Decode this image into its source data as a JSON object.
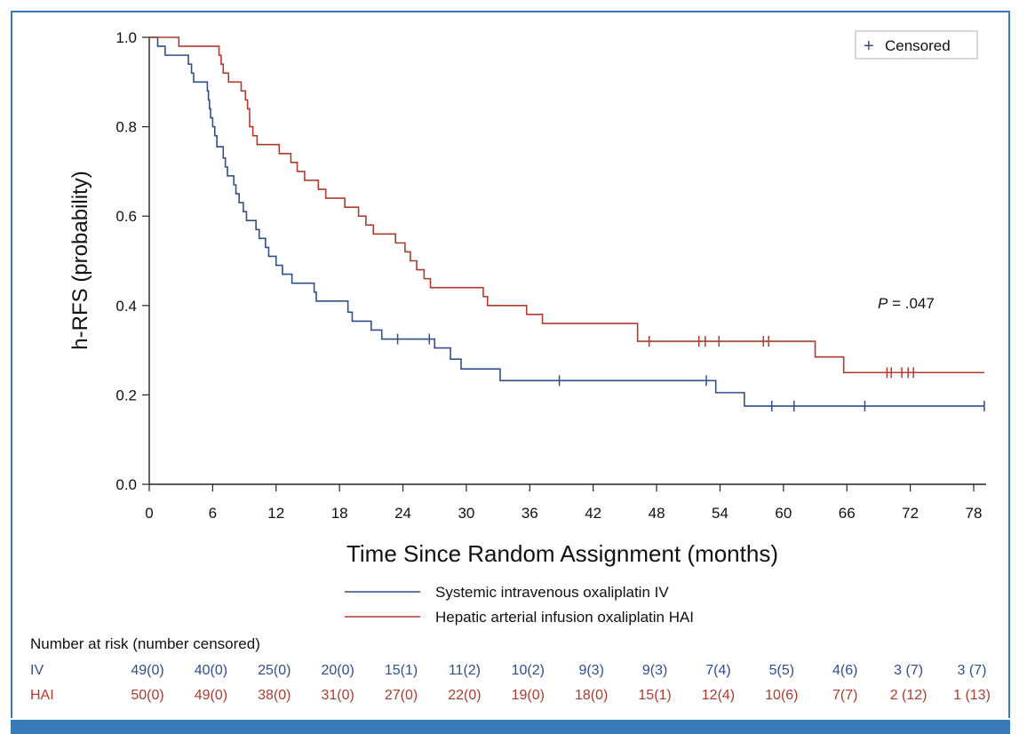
{
  "chart_data": {
    "type": "line",
    "ylabel": "h-RFS (probability)",
    "xlabel": "Time Since Random Assignment (months)",
    "xlim": [
      0,
      79
    ],
    "ylim": [
      0,
      1
    ],
    "x_ticks": [
      0,
      6,
      12,
      18,
      24,
      30,
      36,
      42,
      48,
      54,
      60,
      66,
      72,
      78
    ],
    "y_ticks": [
      "0.0",
      "0.2",
      "0.4",
      "0.6",
      "0.8",
      "1.0"
    ],
    "censored_legend": "Censored",
    "p_value_prefix": "P",
    "p_value_suffix": " = .047",
    "series": [
      {
        "name": "Systemic intravenous oxaliplatin IV",
        "short": "IV",
        "color": "#2f4f8f",
        "steps": [
          [
            0,
            1.0
          ],
          [
            0.8,
            0.98
          ],
          [
            1.5,
            0.96
          ],
          [
            3.7,
            0.94
          ],
          [
            4.0,
            0.92
          ],
          [
            4.2,
            0.9
          ],
          [
            5.5,
            0.88
          ],
          [
            5.6,
            0.86
          ],
          [
            5.7,
            0.84
          ],
          [
            5.8,
            0.82
          ],
          [
            6.0,
            0.8
          ],
          [
            6.2,
            0.78
          ],
          [
            6.4,
            0.755
          ],
          [
            7.0,
            0.73
          ],
          [
            7.2,
            0.71
          ],
          [
            7.4,
            0.69
          ],
          [
            8.0,
            0.67
          ],
          [
            8.2,
            0.65
          ],
          [
            8.5,
            0.63
          ],
          [
            8.9,
            0.61
          ],
          [
            9.2,
            0.59
          ],
          [
            10.1,
            0.57
          ],
          [
            10.4,
            0.55
          ],
          [
            11.0,
            0.53
          ],
          [
            11.3,
            0.51
          ],
          [
            12.0,
            0.49
          ],
          [
            12.6,
            0.47
          ],
          [
            13.5,
            0.45
          ],
          [
            15.6,
            0.43
          ],
          [
            15.8,
            0.41
          ],
          [
            18.8,
            0.385
          ],
          [
            19.2,
            0.365
          ],
          [
            21.0,
            0.345
          ],
          [
            22.0,
            0.325
          ],
          [
            27.0,
            0.305
          ],
          [
            28.5,
            0.28
          ],
          [
            29.5,
            0.258
          ],
          [
            33.2,
            0.232
          ],
          [
            53.6,
            0.205
          ],
          [
            56.3,
            0.175
          ],
          [
            79.0,
            0.175
          ]
        ],
        "censored": [
          23.5,
          26.5,
          38.8,
          52.7,
          58.9,
          61.0,
          67.7,
          79.0
        ]
      },
      {
        "name": "Hepatic arterial infusion oxaliplatin HAI",
        "short": "HAI",
        "color": "#b03a2e",
        "steps": [
          [
            0,
            1.0
          ],
          [
            2.8,
            0.98
          ],
          [
            6.6,
            0.96
          ],
          [
            6.8,
            0.94
          ],
          [
            7.0,
            0.92
          ],
          [
            7.5,
            0.9
          ],
          [
            8.7,
            0.88
          ],
          [
            9.1,
            0.86
          ],
          [
            9.3,
            0.84
          ],
          [
            9.5,
            0.8
          ],
          [
            9.8,
            0.78
          ],
          [
            10.2,
            0.76
          ],
          [
            12.3,
            0.74
          ],
          [
            13.4,
            0.72
          ],
          [
            14.0,
            0.7
          ],
          [
            14.7,
            0.68
          ],
          [
            16.0,
            0.66
          ],
          [
            16.7,
            0.64
          ],
          [
            18.5,
            0.62
          ],
          [
            19.8,
            0.6
          ],
          [
            20.5,
            0.58
          ],
          [
            21.2,
            0.56
          ],
          [
            23.3,
            0.54
          ],
          [
            24.2,
            0.52
          ],
          [
            24.7,
            0.5
          ],
          [
            25.3,
            0.48
          ],
          [
            26.0,
            0.46
          ],
          [
            26.6,
            0.44
          ],
          [
            31.6,
            0.42
          ],
          [
            32.0,
            0.4
          ],
          [
            35.7,
            0.38
          ],
          [
            37.2,
            0.36
          ],
          [
            46.2,
            0.32
          ],
          [
            63.0,
            0.285
          ],
          [
            65.7,
            0.25
          ],
          [
            79.0,
            0.25
          ]
        ],
        "censored": [
          47.3,
          52.0,
          52.6,
          53.9,
          58.1,
          58.6,
          69.8,
          70.2,
          71.2,
          71.8,
          72.3
        ]
      }
    ],
    "risk_table": {
      "title": "Number at risk (number censored)",
      "times": [
        0,
        6,
        12,
        18,
        24,
        30,
        36,
        42,
        48,
        54,
        60,
        66,
        72,
        78
      ],
      "IV": [
        "49(0)",
        "40(0)",
        "25(0)",
        "20(0)",
        "15(1)",
        "11(2)",
        "10(2)",
        "9(3)",
        "9(3)",
        "7(4)",
        "5(5)",
        "4(6)",
        "3 (7)",
        "3 (7)"
      ],
      "HAI": [
        "50(0)",
        "49(0)",
        "38(0)",
        "31(0)",
        "27(0)",
        "22(0)",
        "19(0)",
        "18(0)",
        "15(1)",
        "12(4)",
        "10(6)",
        "7(7)",
        "2 (12)",
        "1 (13)"
      ]
    }
  }
}
